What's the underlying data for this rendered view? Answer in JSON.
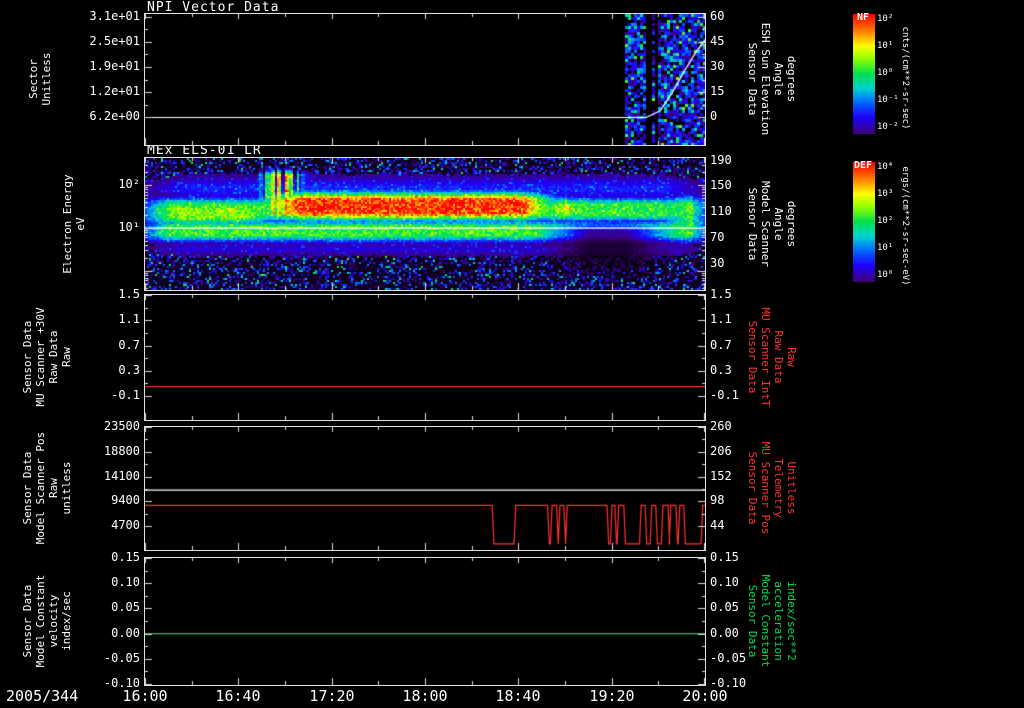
{
  "plot": {
    "date_label": "2005/344",
    "x_ticks": [
      "16:00",
      "16:40",
      "17:20",
      "18:00",
      "18:40",
      "19:20",
      "20:00"
    ],
    "background_color": "#000000"
  },
  "colorbars": [
    {
      "name": "NF",
      "unit": "cnts/(cm**2-sr-sec)",
      "tick_labels": [
        "10²",
        "10¹",
        "10⁰",
        "10⁻¹",
        "10⁻²"
      ]
    },
    {
      "name": "DEF",
      "unit": "ergs/(cm**2-sr-sec-eV)",
      "tick_labels": [
        "10⁴",
        "10³",
        "10²",
        "10¹",
        "10⁰"
      ]
    }
  ],
  "chart_data": [
    {
      "id": "npi-vector",
      "type": "heatmap",
      "title": "NPI Vector Data",
      "left_label": "Sector\nUnitless",
      "left_ticks": [
        "3.1e+01",
        "2.5e+01",
        "1.9e+01",
        "1.2e+01",
        "6.2e+00"
      ],
      "right_label": "Sensor Data\nESH Sun Elevation\nAngle\ndegrees",
      "right_ticks": [
        "60",
        "45",
        "30",
        "15",
        "0"
      ],
      "series": [
        {
          "name": "esh-sun-elevation-angle",
          "color": "#ffffff",
          "axis": "right",
          "x_frac": [
            0,
            0.895,
            0.92,
            0.94,
            0.962,
            0.982,
            1.0
          ],
          "values": [
            0,
            0,
            4,
            14,
            27,
            38,
            46
          ]
        }
      ],
      "heatmap": {
        "x_frac": [
          0.852,
          1.0
        ],
        "note": "sparse low neutral-particle counts (blue/purple columns) from ~19:25 to 20:00"
      }
    },
    {
      "id": "mex-els",
      "type": "heatmap",
      "title": "MEx ELS-01 LR",
      "left_label": "Electron Energy\neV",
      "left_scale": "log",
      "left_ticks": [
        "10²",
        "10¹"
      ],
      "right_label": "Sensor Data\nModel Scanner\nAngle\ndegrees",
      "right_ticks": [
        "190",
        "150",
        "110",
        "70",
        "30"
      ],
      "series": [
        {
          "name": "model-scanner-angle",
          "color": "#ffffff",
          "axis": "right",
          "x_frac": [
            0,
            1
          ],
          "values": [
            85,
            85
          ]
        }
      ],
      "heatmap": {
        "background": 0.045,
        "features": [
          {
            "name": "upper-haze",
            "x": [
              0.0,
              1.0
            ],
            "y": [
              0.13,
              0.32
            ],
            "intensity": 0.26,
            "soft": 0.08
          },
          {
            "name": "band-upper",
            "x": [
              0.0,
              1.0
            ],
            "y": [
              0.3,
              0.47
            ],
            "intensity": 0.58,
            "soft": 0.04
          },
          {
            "name": "band-lower",
            "x": [
              0.0,
              1.0
            ],
            "y": [
              0.47,
              0.62
            ],
            "intensity": 0.6,
            "soft": 0.04
          },
          {
            "name": "left-bright",
            "x": [
              0.0,
              0.23
            ],
            "y": [
              0.32,
              0.5
            ],
            "intensity": 0.66,
            "soft": 0.05
          },
          {
            "name": "red-blob",
            "x": [
              0.225,
              0.72
            ],
            "y": [
              0.26,
              0.46
            ],
            "intensity": 0.98,
            "soft": 0.05
          },
          {
            "name": "pre-spikes",
            "x": [
              0.21,
              0.275
            ],
            "y": [
              0.09,
              0.45
            ],
            "intensity": 0.88,
            "soft": 0.03,
            "columnar": true
          },
          {
            "name": "blob-tail",
            "x": [
              0.7,
              0.8
            ],
            "y": [
              0.3,
              0.46
            ],
            "intensity": 0.74,
            "soft": 0.05
          },
          {
            "name": "lower-haze",
            "x": [
              0.0,
              1.0
            ],
            "y": [
              0.62,
              0.74
            ],
            "intensity": 0.2,
            "soft": 0.06
          },
          {
            "name": "dark-notch",
            "x": [
              0.74,
              0.91
            ],
            "y": [
              0.5,
              0.86
            ],
            "intensity": -0.78,
            "soft": 0.05
          },
          {
            "name": "right-band",
            "x": [
              0.925,
              1.0
            ],
            "y": [
              0.28,
              0.62
            ],
            "intensity": 0.62,
            "soft": 0.05
          }
        ]
      }
    },
    {
      "id": "mu-scanner-30v",
      "type": "line",
      "left_label": "Sensor Data\nMU Scanner +30V\nRaw Data\nRaw",
      "left_ticks": [
        "1.5",
        "1.1",
        "0.7",
        "0.3",
        "-0.1"
      ],
      "right_label": "Sensor Data\nMU Scanner IntT\nRaw Data\nRaw",
      "right_label_color": "#ff3232",
      "right_ticks": [
        "1.5",
        "1.1",
        "0.7",
        "0.3",
        "-0.1"
      ],
      "series": [
        {
          "name": "mu-scanner-raw",
          "color": "#ff3232",
          "axis": "left",
          "baseline": 0.05
        }
      ]
    },
    {
      "id": "scanner-pos",
      "type": "line",
      "left_label": "Sensor Data\nModel Scanner Pos\nRaw\nunitless",
      "left_ticks": [
        "23500",
        "18800",
        "14100",
        "9400",
        "4700"
      ],
      "right_label": "Sensor Data\nMU Scanner Pos\nTelemetry\nUnitless",
      "right_label_color": "#ff3232",
      "right_ticks": [
        "260",
        "206",
        "152",
        "98",
        "44"
      ],
      "series": [
        {
          "name": "model-scanner-pos",
          "color": "#ffffff",
          "axis": "left",
          "baseline": 11500
        },
        {
          "name": "mu-scanner-pos-telemetry",
          "color": "#ff3232",
          "axis": "right",
          "baseline": 89,
          "dip_value": 5,
          "dips_x_frac": [
            [
              0.62,
              0.662
            ],
            [
              0.719,
              0.727
            ],
            [
              0.735,
              0.741
            ],
            [
              0.748,
              0.754
            ],
            [
              0.825,
              0.834
            ],
            [
              0.839,
              0.846
            ],
            [
              0.855,
              0.886
            ],
            [
              0.893,
              0.905
            ],
            [
              0.912,
              0.925
            ],
            [
              0.934,
              0.939
            ],
            [
              0.948,
              0.955
            ],
            [
              0.962,
              0.996
            ]
          ]
        }
      ]
    },
    {
      "id": "model-constant",
      "type": "line",
      "left_label": "Sensor Data\nModel Constant\nvelocity\nindex/sec",
      "left_ticks": [
        "0.15",
        "0.10",
        "0.05",
        "0.00",
        "-0.05",
        "-0.10"
      ],
      "right_label": "Sensor Data\nModel Constant\nacceleration\nindex/sec**2",
      "right_label_color": "#00dd55",
      "right_ticks": [
        "0.15",
        "0.10",
        "0.05",
        "0.00",
        "-0.05",
        "-0.10"
      ],
      "series": [
        {
          "name": "model-constant-velocity",
          "color": "#00cc66",
          "axis": "left",
          "baseline": 0.0
        }
      ]
    }
  ]
}
